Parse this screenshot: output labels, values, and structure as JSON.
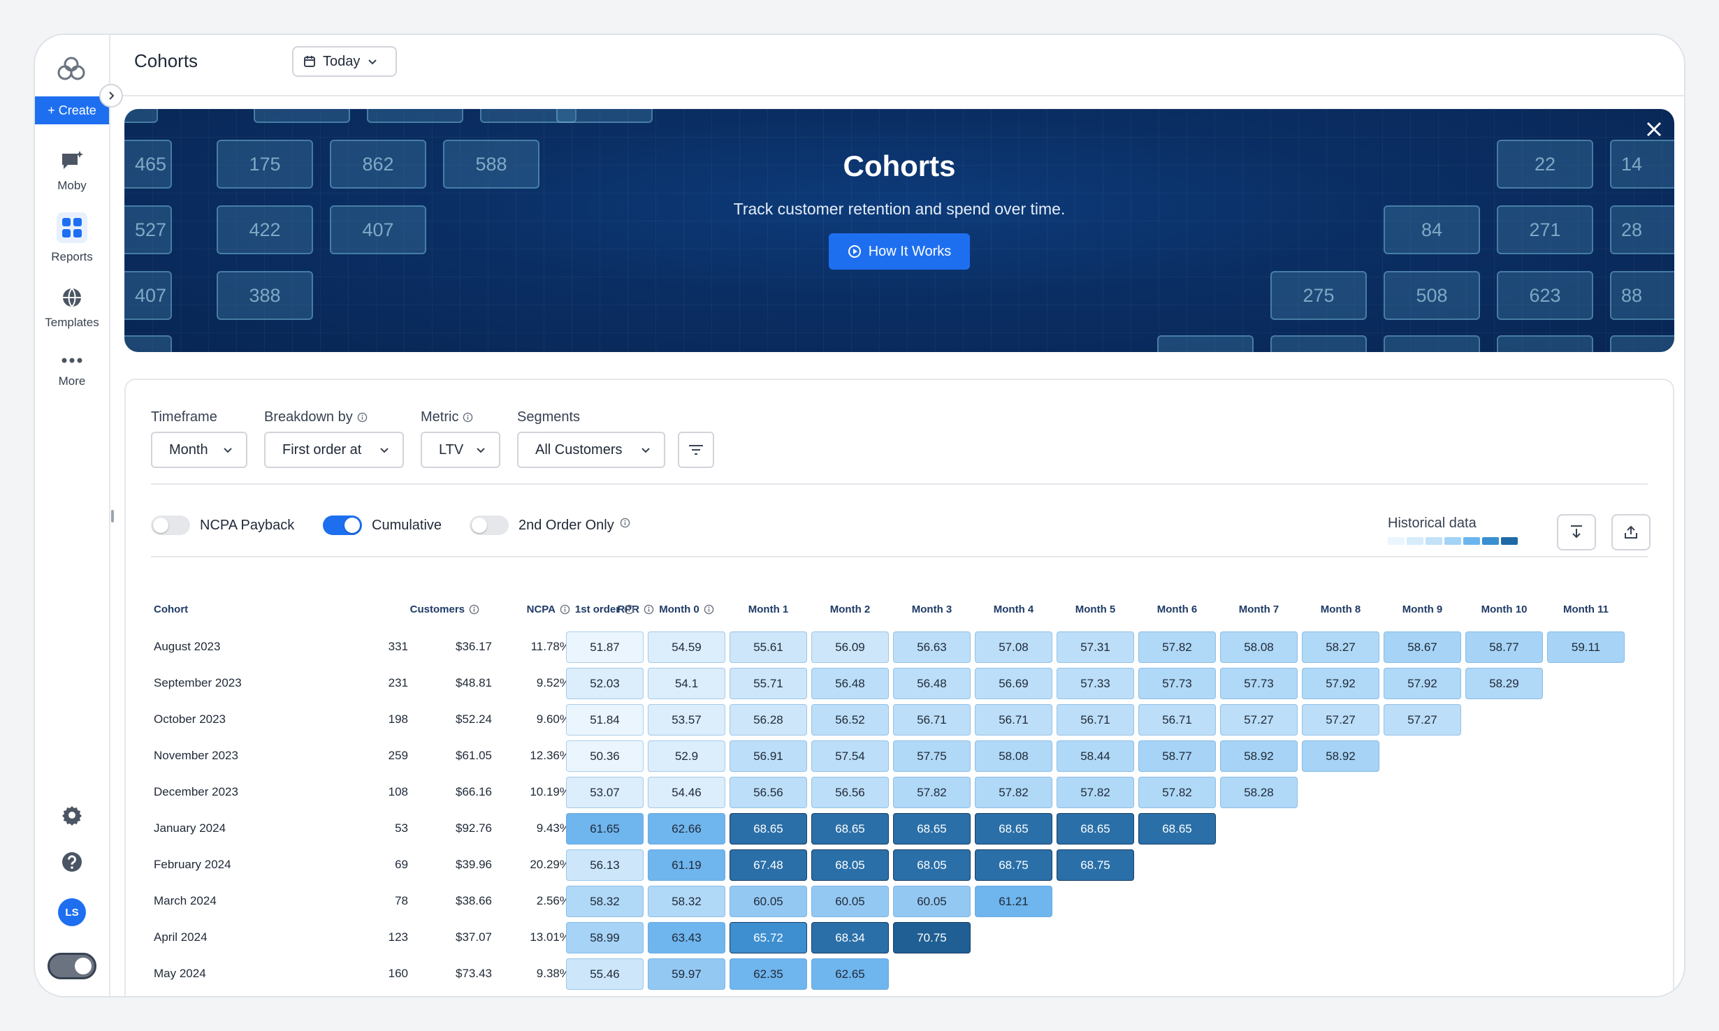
{
  "sidebar": {
    "create_label": "+ Create",
    "items": [
      {
        "label": "Moby",
        "icon": "chat-sparkle-icon"
      },
      {
        "label": "Reports",
        "icon": "grid-icon"
      },
      {
        "label": "Templates",
        "icon": "globe-icon"
      },
      {
        "label": "More",
        "icon": "dots-icon"
      }
    ],
    "avatar_initials": "LS"
  },
  "header": {
    "title": "Cohorts",
    "date_range": "Today"
  },
  "banner": {
    "title": "Cohorts",
    "subtitle": "Track customer retention and spend over time.",
    "button_label": "How It Works",
    "tiles": [
      "465",
      "175",
      "862",
      "588",
      "527",
      "422",
      "407",
      "407",
      "388",
      "22",
      "14",
      "84",
      "271",
      "28",
      "275",
      "508",
      "623",
      "88"
    ]
  },
  "filters": {
    "timeframe": {
      "label": "Timeframe",
      "value": "Month"
    },
    "breakdown": {
      "label": "Breakdown by",
      "value": "First order at"
    },
    "metric": {
      "label": "Metric",
      "value": "LTV"
    },
    "segments": {
      "label": "Segments",
      "value": "All Customers"
    }
  },
  "toggles": {
    "ncpa_payback": {
      "label": "NCPA Payback",
      "on": false
    },
    "cumulative": {
      "label": "Cumulative",
      "on": true
    },
    "second_order": {
      "label": "2nd Order Only",
      "on": false
    }
  },
  "legend": {
    "label": "Historical data",
    "colors": [
      "#eaf5fd",
      "#d6ecfb",
      "#c1e2f9",
      "#a4d3f6",
      "#6cb6ef",
      "#3a8fd1",
      "#1f6aa5"
    ]
  },
  "table": {
    "headers": [
      "Cohort",
      "Customers",
      "NCPA",
      "RPR",
      "1st order",
      "Month 0",
      "Month 1",
      "Month 2",
      "Month 3",
      "Month 4",
      "Month 5",
      "Month 6",
      "Month 7",
      "Month 8",
      "Month 9",
      "Month 10",
      "Month 11"
    ],
    "rows": [
      {
        "cohort": "August 2023",
        "customers": "331",
        "ncpa": "$36.17",
        "rpr": "11.78%",
        "values": [
          "51.87",
          "54.59",
          "55.61",
          "56.09",
          "56.63",
          "57.08",
          "57.31",
          "57.82",
          "58.08",
          "58.27",
          "58.67",
          "58.77",
          "59.11"
        ]
      },
      {
        "cohort": "September 2023",
        "customers": "231",
        "ncpa": "$48.81",
        "rpr": "9.52%",
        "values": [
          "52.03",
          "54.1",
          "55.71",
          "56.48",
          "56.48",
          "56.69",
          "57.33",
          "57.73",
          "57.73",
          "57.92",
          "57.92",
          "58.29"
        ]
      },
      {
        "cohort": "October 2023",
        "customers": "198",
        "ncpa": "$52.24",
        "rpr": "9.60%",
        "values": [
          "51.84",
          "53.57",
          "56.28",
          "56.52",
          "56.71",
          "56.71",
          "56.71",
          "56.71",
          "57.27",
          "57.27",
          "57.27"
        ]
      },
      {
        "cohort": "November 2023",
        "customers": "259",
        "ncpa": "$61.05",
        "rpr": "12.36%",
        "values": [
          "50.36",
          "52.9",
          "56.91",
          "57.54",
          "57.75",
          "58.08",
          "58.44",
          "58.77",
          "58.92",
          "58.92"
        ]
      },
      {
        "cohort": "December 2023",
        "customers": "108",
        "ncpa": "$66.16",
        "rpr": "10.19%",
        "values": [
          "53.07",
          "54.46",
          "56.56",
          "56.56",
          "57.82",
          "57.82",
          "57.82",
          "57.82",
          "58.28"
        ]
      },
      {
        "cohort": "January 2024",
        "customers": "53",
        "ncpa": "$92.76",
        "rpr": "9.43%",
        "values": [
          "61.65",
          "62.66",
          "68.65",
          "68.65",
          "68.65",
          "68.65",
          "68.65",
          "68.65"
        ]
      },
      {
        "cohort": "February 2024",
        "customers": "69",
        "ncpa": "$39.96",
        "rpr": "20.29%",
        "values": [
          "56.13",
          "61.19",
          "67.48",
          "68.05",
          "68.05",
          "68.75",
          "68.75"
        ]
      },
      {
        "cohort": "March 2024",
        "customers": "78",
        "ncpa": "$38.66",
        "rpr": "2.56%",
        "values": [
          "58.32",
          "58.32",
          "60.05",
          "60.05",
          "60.05",
          "61.21"
        ]
      },
      {
        "cohort": "April 2024",
        "customers": "123",
        "ncpa": "$37.07",
        "rpr": "13.01%",
        "values": [
          "58.99",
          "63.43",
          "65.72",
          "68.34",
          "70.75"
        ]
      },
      {
        "cohort": "May 2024",
        "customers": "160",
        "ncpa": "$73.43",
        "rpr": "9.38%",
        "values": [
          "55.46",
          "59.97",
          "62.35",
          "62.65"
        ]
      }
    ]
  }
}
